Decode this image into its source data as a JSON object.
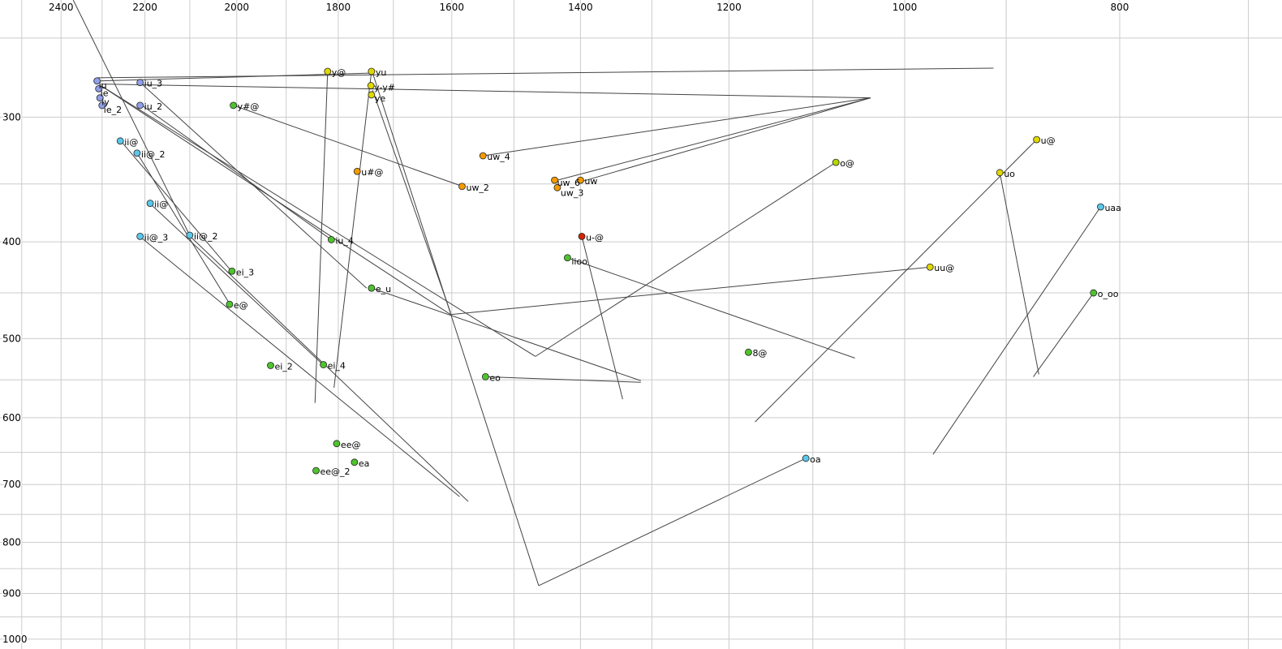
{
  "chart_data": {
    "type": "scatter",
    "title": "",
    "x_axis": {
      "label": "",
      "scale": "log",
      "reversed": true,
      "lim": [
        2557,
        676
      ],
      "ticks": [
        2400,
        2200,
        2000,
        1800,
        1600,
        1400,
        1200,
        1000,
        800
      ],
      "grid_start": 2500,
      "grid_end": 700,
      "grid_step": 100
    },
    "y_axis": {
      "label": "",
      "scale": "log",
      "reversed": true,
      "lim": [
        229,
        1023
      ],
      "ticks": [
        300,
        400,
        500,
        600,
        700,
        800,
        900,
        1000
      ],
      "grid_start": 250,
      "grid_end": 1000,
      "grid_step": 50
    },
    "grid_on": true,
    "grid_color": "#cccccc",
    "line_color": "#444444",
    "tick_color": "#000000",
    "palette": {
      "blue": "#8f9fe8",
      "cyan": "#5bc8ea",
      "green": "#4fc32e",
      "yellow": "#e0d800",
      "yellowgreen": "#b4d800",
      "orange": "#f59a00",
      "red": "#d42300"
    },
    "points": [
      {
        "label": "iu",
        "f2": 2312,
        "f1": 276,
        "color": "blue",
        "lo": [
          2,
          9
        ]
      },
      {
        "label": "ie",
        "f2": 2308,
        "f1": 281,
        "color": "blue",
        "lo": [
          2,
          9
        ]
      },
      {
        "label": "iy",
        "f2": 2305,
        "f1": 287,
        "color": "blue",
        "lo": [
          2,
          9
        ]
      },
      {
        "label": "ie_2",
        "f2": 2300,
        "f1": 292,
        "color": "blue",
        "lo": [
          2,
          9
        ]
      },
      {
        "label": "iu_3",
        "f2": 2211,
        "f1": 277,
        "color": "blue"
      },
      {
        "label": "iu_2",
        "f2": 2211,
        "f1": 292,
        "color": "blue"
      },
      {
        "label": "ii@",
        "f2": 2257,
        "f1": 317,
        "color": "cyan"
      },
      {
        "label": "ii@_2",
        "f2": 2218,
        "f1": 326,
        "color": "cyan"
      },
      {
        "label": "ii@",
        "f2": 2188,
        "f1": 366,
        "color": "cyan"
      },
      {
        "label": "ii@_3",
        "f2": 2211,
        "f1": 395,
        "color": "cyan"
      },
      {
        "label": "ii@_2",
        "f2": 2100,
        "f1": 394,
        "color": "cyan"
      },
      {
        "label": "y#@",
        "f2": 2007,
        "f1": 292,
        "color": "green"
      },
      {
        "label": "ei_3",
        "f2": 2010,
        "f1": 428,
        "color": "green"
      },
      {
        "label": "e@",
        "f2": 2015,
        "f1": 462,
        "color": "green"
      },
      {
        "label": "ei_2",
        "f2": 1931,
        "f1": 532,
        "color": "green"
      },
      {
        "label": "ei_4",
        "f2": 1828,
        "f1": 531,
        "color": "green"
      },
      {
        "label": "iu_4",
        "f2": 1813,
        "f1": 398,
        "color": "green"
      },
      {
        "label": "e_u",
        "f2": 1739,
        "f1": 445,
        "color": "green"
      },
      {
        "label": "eo",
        "f2": 1545,
        "f1": 546,
        "color": "green"
      },
      {
        "label": "ee@",
        "f2": 1803,
        "f1": 637,
        "color": "green"
      },
      {
        "label": "ea",
        "f2": 1770,
        "f1": 665,
        "color": "green"
      },
      {
        "label": "ee@_2",
        "f2": 1842,
        "f1": 678,
        "color": "green"
      },
      {
        "label": "y@",
        "f2": 1820,
        "f1": 270,
        "color": "yellow"
      },
      {
        "label": "yu",
        "f2": 1739,
        "f1": 270,
        "color": "yellow"
      },
      {
        "label": "y-y#",
        "f2": 1740,
        "f1": 279,
        "color": "yellow",
        "lo": [
          4,
          6
        ]
      },
      {
        "label": "ye",
        "f2": 1739,
        "f1": 285,
        "color": "yellow",
        "lo": [
          4,
          8
        ]
      },
      {
        "label": "uw_4",
        "f2": 1549,
        "f1": 328,
        "color": "orange"
      },
      {
        "label": "u#@",
        "f2": 1765,
        "f1": 340,
        "color": "orange"
      },
      {
        "label": "uw_2",
        "f2": 1583,
        "f1": 352,
        "color": "orange"
      },
      {
        "label": "uw_6",
        "f2": 1438,
        "f1": 347,
        "color": "orange",
        "lo": [
          3,
          7
        ]
      },
      {
        "label": "uw",
        "f2": 1400,
        "f1": 347,
        "color": "orange"
      },
      {
        "label": "uw_3",
        "f2": 1434,
        "f1": 353,
        "color": "orange",
        "lo": [
          4,
          10
        ]
      },
      {
        "label": "u-@",
        "f2": 1398,
        "f1": 395,
        "color": "red"
      },
      {
        "label": "iioo",
        "f2": 1419,
        "f1": 415,
        "color": "green",
        "lo": [
          5,
          8
        ]
      },
      {
        "label": "8@",
        "f2": 1176,
        "f1": 516,
        "color": "green"
      },
      {
        "label": "o@",
        "f2": 1074,
        "f1": 333,
        "color": "yellowgreen"
      },
      {
        "label": "uu@",
        "f2": 974,
        "f1": 424,
        "color": "yellow"
      },
      {
        "label": "u@",
        "f2": 872,
        "f1": 316,
        "color": "yellow"
      },
      {
        "label": "uo",
        "f2": 906,
        "f1": 341,
        "color": "yellow"
      },
      {
        "label": "uaa",
        "f2": 816,
        "f1": 369,
        "color": "cyan"
      },
      {
        "label": "o_oo",
        "f2": 822,
        "f1": 450,
        "color": "green"
      },
      {
        "label": "oa",
        "f2": 1108,
        "f1": 659,
        "color": "cyan"
      }
    ],
    "segments": [
      [
        [
          2312,
          274
        ],
        [
          912,
          268
        ]
      ],
      [
        [
          2309,
          276
        ],
        [
          1736,
          271
        ]
      ],
      [
        [
          2303,
          278
        ],
        [
          1036,
          287
        ]
      ],
      [
        [
          1036,
          287
        ],
        [
          1434,
          347
        ]
      ],
      [
        [
          1036,
          287
        ],
        [
          1398,
          348
        ]
      ],
      [
        [
          2303,
          279
        ],
        [
          1602,
          473
        ]
      ],
      [
        [
          2297,
          280
        ],
        [
          1467,
          521
        ]
      ],
      [
        [
          2207,
          278
        ],
        [
          1748,
          445
        ]
      ],
      [
        [
          2207,
          292
        ],
        [
          1813,
          398
        ]
      ],
      [
        [
          1820,
          270
        ],
        [
          1844,
          580
        ]
      ],
      [
        [
          1739,
          270
        ],
        [
          1808,
          560
        ]
      ],
      [
        [
          1737,
          282
        ],
        [
          1602,
          471
        ]
      ],
      [
        [
          2007,
          292
        ],
        [
          1582,
          352
        ]
      ],
      [
        [
          2253,
          318
        ],
        [
          2009,
          429
        ]
      ],
      [
        [
          2216,
          327
        ],
        [
          2013,
          463
        ]
      ],
      [
        [
          2186,
          367
        ],
        [
          1827,
          532
        ]
      ],
      [
        [
          2209,
          396
        ],
        [
          1587,
          720
        ]
      ],
      [
        [
          2099,
          395
        ],
        [
          1573,
          728
        ]
      ],
      [
        [
          1108,
          659
        ],
        [
          1462,
          884
        ]
      ],
      [
        [
          1736,
          272
        ],
        [
          1462,
          884
        ]
      ],
      [
        [
          872,
          316
        ],
        [
          1168,
          606
        ]
      ],
      [
        [
          1074,
          333
        ],
        [
          1467,
          521
        ]
      ],
      [
        [
          906,
          341
        ],
        [
          870,
          543
        ]
      ],
      [
        [
          816,
          369
        ],
        [
          971,
          653
        ]
      ],
      [
        [
          822,
          450
        ],
        [
          875,
          546
        ]
      ],
      [
        [
          1419,
          415
        ],
        [
          1053,
          523
        ]
      ],
      [
        [
          1545,
          546
        ],
        [
          1315,
          553
        ]
      ],
      [
        [
          1398,
          395
        ],
        [
          1340,
          575
        ]
      ],
      [
        [
          1602,
          473
        ],
        [
          974,
          424
        ]
      ],
      [
        [
          1549,
          328
        ],
        [
          1036,
          287
        ]
      ],
      [
        [
          2370,
          229
        ],
        [
          2099,
          395
        ]
      ],
      [
        [
          1739,
          445
        ],
        [
          1315,
          551
        ]
      ]
    ]
  }
}
